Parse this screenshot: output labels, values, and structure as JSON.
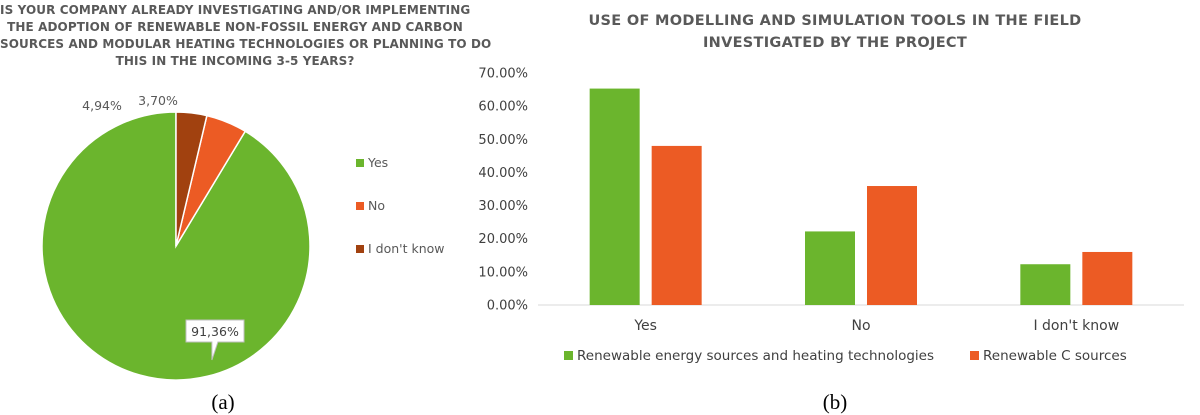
{
  "figure": {
    "caption_a": "(a)",
    "caption_b": "(b)"
  },
  "chart_data": [
    {
      "type": "pie",
      "title_lines": [
        "IS YOUR COMPANY ALREADY INVESTIGATING AND/OR IMPLEMENTING",
        "THE ADOPTION OF RENEWABLE NON-FOSSIL ENERGY AND CARBON",
        "SOURCES AND MODULAR HEATING TECHNOLOGIES OR PLANNING TO DO",
        "THIS IN THE INCOMING 3-5 YEARS?"
      ],
      "slices": [
        {
          "label": "Yes",
          "value": 91.36,
          "display": "91,36%",
          "color": "#6bb52d"
        },
        {
          "label": "No",
          "value": 4.94,
          "display": "4,94%",
          "color": "#ec5b24"
        },
        {
          "label": "I don't know",
          "value": 3.7,
          "display": "3,70%",
          "color": "#a1410f"
        }
      ],
      "legend_position": "right"
    },
    {
      "type": "bar",
      "title_lines": [
        "USE OF MODELLING AND SIMULATION TOOLS IN THE FIELD",
        "INVESTIGATED BY THE PROJECT"
      ],
      "categories": [
        "Yes",
        "No",
        "I don't know"
      ],
      "series": [
        {
          "name": "Renewable energy sources and heating technologies",
          "values": [
            65.3,
            22.2,
            12.3
          ],
          "color": "#6bb52d"
        },
        {
          "name": "Renewable C sources",
          "values": [
            48.0,
            35.9,
            16.0
          ],
          "color": "#ec5b24"
        }
      ],
      "ylim": [
        0,
        70
      ],
      "yticks": [
        "0.00%",
        "10.00%",
        "20.00%",
        "30.00%",
        "40.00%",
        "50.00%",
        "60.00%",
        "70.00%"
      ],
      "ytick_values": [
        0,
        10,
        20,
        30,
        40,
        50,
        60,
        70
      ],
      "grid": false,
      "legend_position": "bottom"
    }
  ]
}
